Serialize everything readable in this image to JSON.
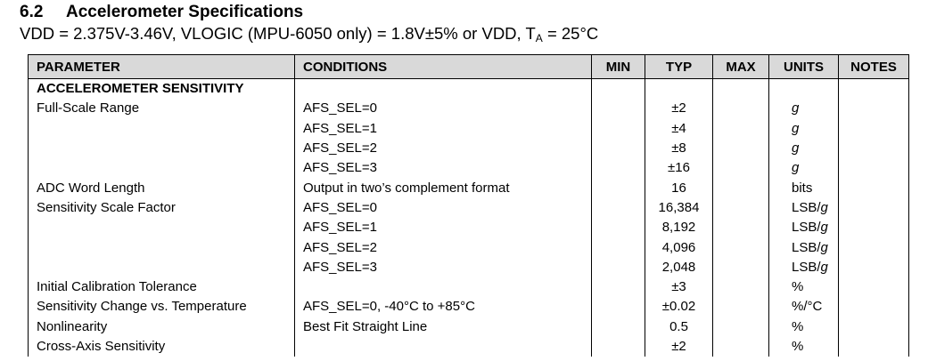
{
  "section": {
    "number": "6.2",
    "title": "Accelerometer Specifications",
    "conditions_prefix": "VDD = 2.375V-3.46V, VLOGIC (MPU-6050 only) = 1.8V±5% or VDD, T",
    "conditions_sub": "A",
    "conditions_suffix": " = 25°C"
  },
  "table": {
    "headers": {
      "parameter": "PARAMETER",
      "conditions": "CONDITIONS",
      "min": "MIN",
      "typ": "TYP",
      "max": "MAX",
      "units": "UNITS",
      "notes": "NOTES"
    },
    "group": "ACCELEROMETER SENSITIVITY",
    "rows": [
      {
        "parameter": "Full-Scale Range",
        "conditions": "AFS_SEL=0",
        "min": "",
        "typ": "±2",
        "max": "",
        "unit_main": "",
        "unit_italic": "g",
        "notes": ""
      },
      {
        "parameter": "",
        "conditions": "AFS_SEL=1",
        "min": "",
        "typ": "±4",
        "max": "",
        "unit_main": "",
        "unit_italic": "g",
        "notes": ""
      },
      {
        "parameter": "",
        "conditions": "AFS_SEL=2",
        "min": "",
        "typ": "±8",
        "max": "",
        "unit_main": "",
        "unit_italic": "g",
        "notes": ""
      },
      {
        "parameter": "",
        "conditions": "AFS_SEL=3",
        "min": "",
        "typ": "±16",
        "max": "",
        "unit_main": "",
        "unit_italic": "g",
        "notes": ""
      },
      {
        "parameter": "ADC Word Length",
        "conditions": "Output in two’s complement format",
        "min": "",
        "typ": "16",
        "max": "",
        "unit_main": "bits",
        "unit_italic": "",
        "notes": ""
      },
      {
        "parameter": "Sensitivity Scale Factor",
        "conditions": "AFS_SEL=0",
        "min": "",
        "typ": "16,384",
        "max": "",
        "unit_main": "LSB/",
        "unit_italic": "g",
        "notes": ""
      },
      {
        "parameter": "",
        "conditions": "AFS_SEL=1",
        "min": "",
        "typ": "8,192",
        "max": "",
        "unit_main": "LSB/",
        "unit_italic": "g",
        "notes": ""
      },
      {
        "parameter": "",
        "conditions": "AFS_SEL=2",
        "min": "",
        "typ": "4,096",
        "max": "",
        "unit_main": "LSB/",
        "unit_italic": "g",
        "notes": ""
      },
      {
        "parameter": "",
        "conditions": "AFS_SEL=3",
        "min": "",
        "typ": "2,048",
        "max": "",
        "unit_main": "LSB/",
        "unit_italic": "g",
        "notes": ""
      },
      {
        "parameter": "Initial Calibration Tolerance",
        "conditions": "",
        "min": "",
        "typ": "±3",
        "max": "",
        "unit_main": "%",
        "unit_italic": "",
        "notes": ""
      },
      {
        "parameter": "Sensitivity Change vs. Temperature",
        "conditions": "AFS_SEL=0, -40°C to +85°C",
        "min": "",
        "typ": "±0.02",
        "max": "",
        "unit_main": "%/°C",
        "unit_italic": "",
        "notes": ""
      },
      {
        "parameter": "Nonlinearity",
        "conditions": "Best Fit Straight Line",
        "min": "",
        "typ": "0.5",
        "max": "",
        "unit_main": "%",
        "unit_italic": "",
        "notes": ""
      },
      {
        "parameter": "Cross-Axis Sensitivity",
        "conditions": "",
        "min": "",
        "typ": "±2",
        "max": "",
        "unit_main": "%",
        "unit_italic": "",
        "notes": ""
      }
    ]
  }
}
